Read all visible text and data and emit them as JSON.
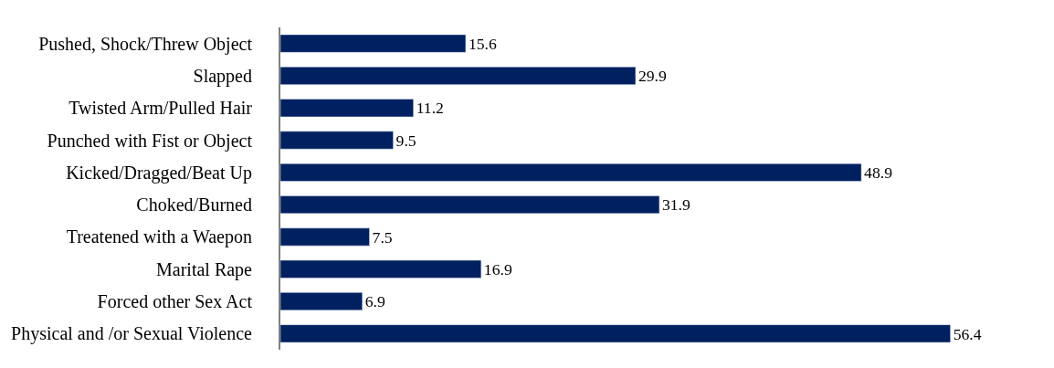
{
  "chart_data": {
    "type": "bar",
    "orientation": "horizontal",
    "data_labels": true,
    "tick_labels": "y",
    "categories": [
      "Pushed, Shock/Threw Object",
      "Slapped",
      "Twisted Arm/Pulled Hair",
      "Punched with Fist or Object",
      "Kicked/Dragged/Beat Up",
      "Choked/Burned",
      "Treatened with a Waepon",
      "Marital Rape",
      "Forced other Sex Act",
      "Physical and /or Sexual Violence"
    ],
    "values": [
      15.6,
      29.9,
      11.2,
      9.5,
      48.9,
      31.9,
      7.5,
      16.9,
      6.9,
      56.4
    ],
    "color": "#002060"
  }
}
